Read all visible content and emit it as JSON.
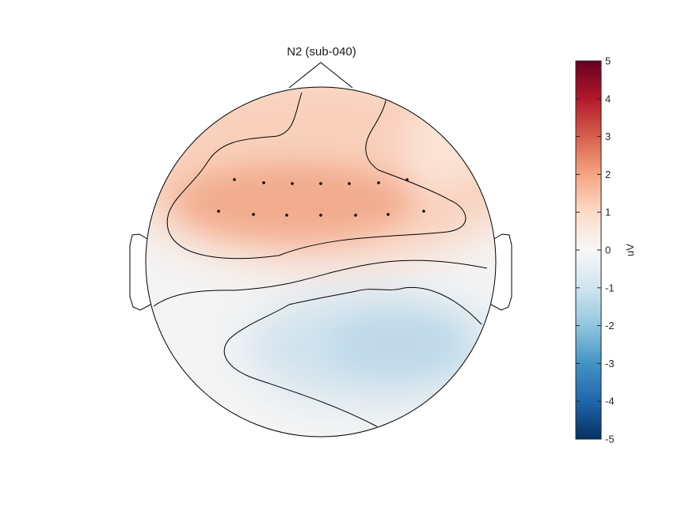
{
  "chart_data": {
    "type": "heatmap",
    "subtype": "topographic-scalp-map",
    "title": "N2 (sub-040)",
    "colorbar": {
      "label": "uV",
      "min": -5,
      "max": 5,
      "ticks": [
        "5",
        "4",
        "3",
        "2",
        "1",
        "0",
        "-1",
        "-2",
        "-3",
        "-4",
        "-5"
      ],
      "tick_values": [
        5,
        4,
        3,
        2,
        1,
        0,
        -1,
        -2,
        -3,
        -4,
        -5
      ],
      "colormap": [
        "#053061",
        "#2166ac",
        "#4393c3",
        "#92c5de",
        "#d1e5f0",
        "#f7f7f7",
        "#fddbc7",
        "#f4a582",
        "#d6604d",
        "#b2182b",
        "#67001f"
      ]
    },
    "electrodes": {
      "row_front": [
        "e1",
        "e2",
        "e3",
        "e4",
        "e5",
        "e6",
        "e7"
      ],
      "row_back": [
        "e8",
        "e9",
        "e10",
        "e11",
        "e12",
        "e13",
        "e14"
      ]
    },
    "field": {
      "frontal_peak_uV": 1.9,
      "right_frontal_uV": 0.6,
      "parietal_trough_uV": -1.2,
      "posterior_uV": -0.2
    },
    "contour_levels_uV": [
      1,
      0,
      -1
    ]
  }
}
